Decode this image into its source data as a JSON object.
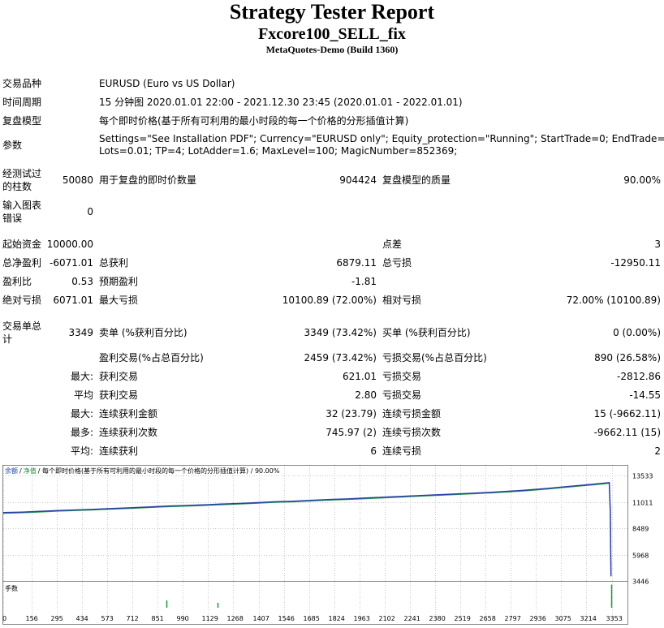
{
  "header": {
    "title": "Strategy Tester Report",
    "subtitle": "Fxcore100_SELL_fix",
    "server": "MetaQuotes-Demo (Build 1360)"
  },
  "info": {
    "symbol_label": "交易品种",
    "symbol_value": "EURUSD (Euro vs US Dollar)",
    "period_label": "时间周期",
    "period_value": "15 分钟图 2020.01.01 22:00 - 2021.12.30 23:45 (2020.01.01 - 2022.01.01)",
    "model_label": "复盘模型",
    "model_value": "每个即时价格(基于所有可利用的最小时段的每一个价格的分形插值计算)",
    "params_label": "参数",
    "params_line1": "Settings=\"See Installation PDF\"; Currency=\"EURUSD only\"; Equity_protection=\"Running\"; StartTrade=0; EndTrade=23;",
    "params_line2": "Lots=0.01; TP=4; LotAdder=1.6; MaxLevel=100; MagicNumber=852369;",
    "bars_label_1": "经测试过",
    "bars_label_2": "的柱数",
    "bars_value": "50080",
    "ticks_label": "用于复盘的即时价数量",
    "ticks_value": "904424",
    "quality_label": "复盘模型的质量",
    "quality_value": "90.00%",
    "errors_label_1": "输入图表",
    "errors_label_2": "错误",
    "errors_value": "0"
  },
  "stats": {
    "initial_deposit_label": "起始资金",
    "initial_deposit": "10000.00",
    "spread_label": "点差",
    "spread": "3",
    "net_profit_label": "总净盈利",
    "net_profit": "-6071.01",
    "gross_profit_label": "总获利",
    "gross_profit": "6879.11",
    "gross_loss_label": "总亏损",
    "gross_loss": "-12950.11",
    "profit_factor_label": "盈利比",
    "profit_factor": "0.53",
    "expected_payoff_label": "预期盈利",
    "expected_payoff": "-1.81",
    "abs_drawdown_label": "绝对亏损",
    "abs_drawdown": "6071.01",
    "max_drawdown_label": "最大亏损",
    "max_drawdown": "10100.89 (72.00%)",
    "rel_drawdown_label": "相对亏损",
    "rel_drawdown": "72.00% (10100.89)",
    "total_trades_label_1": "交易单总",
    "total_trades_label_2": "计",
    "total_trades": "3349",
    "short_label": "卖单 (%获利百分比)",
    "short_value": "3349 (73.42%)",
    "long_label": "买单 (%获利百分比)",
    "long_value": "0 (0.00%)",
    "profit_trades_label": "盈利交易(%占总百分比)",
    "profit_trades_value": "2459 (73.42%)",
    "loss_trades_label": "亏损交易(%占总百分比)",
    "loss_trades_value": "890 (26.58%)",
    "largest_label": "最大:",
    "largest_profit_label": "获利交易",
    "largest_profit": "621.01",
    "largest_loss_label": "亏损交易",
    "largest_loss": "-2812.86",
    "average_label": "平均",
    "avg_profit_label": "获利交易",
    "avg_profit": "2.80",
    "avg_loss_label": "亏损交易",
    "avg_loss": "-14.55",
    "max_label": "最大:",
    "max_consec_wins_label": "连续获利金额",
    "max_consec_wins": "32 (23.79)",
    "max_consec_losses_label": "连续亏损金额",
    "max_consec_losses": "15 (-9662.11)",
    "maximal_label": "最多:",
    "maximal_consec_profit_label": "连续获利次数",
    "maximal_consec_profit": "745.97 (2)",
    "maximal_consec_loss_label": "连续亏损次数",
    "maximal_consec_loss": "-9662.11 (15)",
    "avg_consec_label": "平均:",
    "avg_consec_wins_label": "连续获利",
    "avg_consec_wins": "6",
    "avg_consec_losses_label": "连续亏损",
    "avg_consec_losses": "2"
  },
  "chart_data": {
    "type": "line",
    "legend_balance": "余额",
    "legend_sep": "/",
    "legend_equity": "净值",
    "legend_rest": "/ 每个即时价格(基于所有可利用的最小时段的每一个价格的分形插值计算) / 90.00%",
    "volume_label": "手数",
    "ylim": [
      3446,
      14500
    ],
    "xlim": [
      0,
      3440
    ],
    "y_ticks": [
      "13533",
      "11011",
      "8489",
      "5968",
      "3446"
    ],
    "y_tick_values": [
      13533,
      11011,
      8489,
      5968,
      3446
    ],
    "x_ticks": [
      "0",
      "156",
      "295",
      "434",
      "573",
      "712",
      "851",
      "990",
      "1129",
      "1268",
      "1407",
      "1546",
      "1685",
      "1824",
      "1963",
      "2102",
      "2241",
      "2380",
      "2519",
      "2658",
      "2797",
      "2936",
      "3075",
      "3214",
      "3353"
    ],
    "balance": {
      "x": [
        0,
        100,
        200,
        300,
        400,
        500,
        600,
        700,
        800,
        900,
        1000,
        1100,
        1200,
        1300,
        1400,
        1500,
        1600,
        1700,
        1800,
        1900,
        2000,
        2100,
        2200,
        2300,
        2400,
        2500,
        2600,
        2700,
        2800,
        2900,
        3000,
        3100,
        3200,
        3300,
        3340,
        3345,
        3349
      ],
      "y": [
        10000,
        10050,
        10120,
        10200,
        10260,
        10320,
        10400,
        10460,
        10540,
        10620,
        10680,
        10740,
        10820,
        10880,
        10960,
        11040,
        11100,
        11180,
        11260,
        11320,
        11400,
        11480,
        11560,
        11640,
        11720,
        11800,
        11880,
        11960,
        12060,
        12180,
        12320,
        12480,
        12640,
        12800,
        12880,
        10200,
        3929
      ]
    },
    "volume_spikes": [
      {
        "x": 900,
        "h": 0.3
      },
      {
        "x": 1180,
        "h": 0.2
      },
      {
        "x": 3350,
        "h": 0.95
      }
    ]
  },
  "colors": {
    "balance_line": "#2a3fa8",
    "equity_line": "#2ea84c",
    "grid": "#c8c8c8",
    "legend_balance": "#1f3fb0",
    "legend_equity": "#1e8c3a",
    "volume_bar": "#1a9a3a"
  }
}
